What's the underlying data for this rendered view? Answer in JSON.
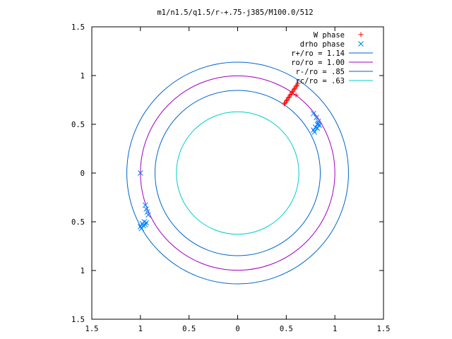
{
  "chart_data": {
    "type": "scatter",
    "title": "m1/n1.5/q1.5/r-+.75-j385/M100.0/512",
    "xlabel": "",
    "ylabel": "",
    "xlim": [
      -1.5,
      1.5
    ],
    "ylim": [
      -1.5,
      1.5
    ],
    "xticks": [
      -1.5,
      -1,
      -0.5,
      0,
      0.5,
      1,
      1.5
    ],
    "yticks": [
      -1.5,
      -1,
      -0.5,
      0,
      0.5,
      1,
      1.5
    ],
    "xtick_labels": [
      "1.5",
      "1",
      "0.5",
      "0",
      "0.5",
      "1",
      "1.5"
    ],
    "ytick_labels": [
      "1.5",
      "1",
      "0.5",
      "0",
      "0.5",
      "1",
      "1.5"
    ],
    "grid": false,
    "legend_position": "top-right",
    "series": [
      {
        "name": "W phase",
        "marker": "plus",
        "color": "#ff0000",
        "points": [
          [
            0.48,
            0.71
          ],
          [
            0.49,
            0.72
          ],
          [
            0.5,
            0.74
          ],
          [
            0.51,
            0.75
          ],
          [
            0.52,
            0.77
          ],
          [
            0.53,
            0.78
          ],
          [
            0.54,
            0.8
          ],
          [
            0.55,
            0.81
          ],
          [
            0.56,
            0.83
          ],
          [
            0.57,
            0.84
          ],
          [
            0.58,
            0.86
          ],
          [
            0.59,
            0.87
          ],
          [
            0.6,
            0.89
          ],
          [
            0.61,
            0.9
          ],
          [
            0.62,
            0.92
          ],
          [
            0.6,
            0.8
          ]
        ]
      },
      {
        "name": "drho phase",
        "marker": "cross",
        "color": "#0080ff",
        "points": [
          [
            -1.0,
            0.0
          ],
          [
            -0.95,
            -0.33
          ],
          [
            -0.94,
            -0.37
          ],
          [
            -0.93,
            -0.4
          ],
          [
            -0.92,
            -0.43
          ],
          [
            -0.96,
            -0.5
          ],
          [
            -0.98,
            -0.52
          ],
          [
            -1.0,
            -0.55
          ],
          [
            -0.99,
            -0.57
          ],
          [
            -0.97,
            -0.54
          ],
          [
            -0.95,
            -0.53
          ],
          [
            -0.94,
            -0.51
          ],
          [
            0.78,
            0.61
          ],
          [
            0.81,
            0.57
          ],
          [
            0.83,
            0.53
          ],
          [
            0.82,
            0.5
          ],
          [
            0.8,
            0.47
          ],
          [
            0.78,
            0.44
          ],
          [
            0.79,
            0.42
          ],
          [
            0.82,
            0.46
          ],
          [
            0.84,
            0.49
          ],
          [
            0.83,
            0.51
          ]
        ]
      },
      {
        "name": "r+/ro = 1.14",
        "type": "circle",
        "radius": 1.14,
        "color": "#0066cc"
      },
      {
        "name": "ro/ro = 1.00",
        "type": "circle",
        "radius": 1.0,
        "color": "#a000c0"
      },
      {
        "name": "r-/ro = .85",
        "type": "circle",
        "radius": 0.85,
        "color": "#0066cc"
      },
      {
        "name": "rc/ro = .63",
        "type": "circle",
        "radius": 0.63,
        "color": "#00cccc"
      }
    ]
  }
}
